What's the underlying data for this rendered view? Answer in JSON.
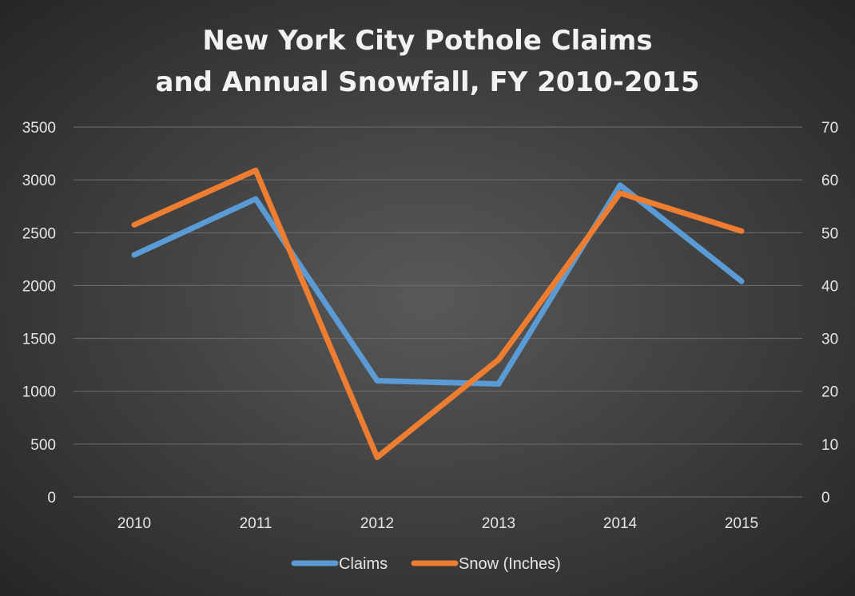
{
  "chart_data": {
    "type": "line",
    "title_lines": [
      "New York City Pothole Claims",
      "and Annual Snowfall, FY 2010-2015"
    ],
    "categories": [
      "2010",
      "2011",
      "2012",
      "2013",
      "2014",
      "2015"
    ],
    "series": [
      {
        "name": "Claims",
        "axis": "left",
        "color": "#5b9bd5",
        "values": [
          2290,
          2820,
          1100,
          1070,
          2950,
          2040
        ]
      },
      {
        "name": "Snow (Inches)",
        "axis": "right",
        "color": "#ed7d31",
        "values": [
          51.5,
          61.8,
          7.5,
          26.0,
          57.5,
          50.3
        ]
      }
    ],
    "y_left": {
      "min": 0,
      "max": 3500,
      "ticks": [
        "0",
        "500",
        "1000",
        "1500",
        "2000",
        "2500",
        "3000",
        "3500"
      ]
    },
    "y_right": {
      "min": 0,
      "max": 70,
      "ticks": [
        "0",
        "10",
        "20",
        "30",
        "40",
        "50",
        "60",
        "70"
      ]
    },
    "grid": true,
    "legend": "bottom",
    "background": "#2f2f2f"
  }
}
